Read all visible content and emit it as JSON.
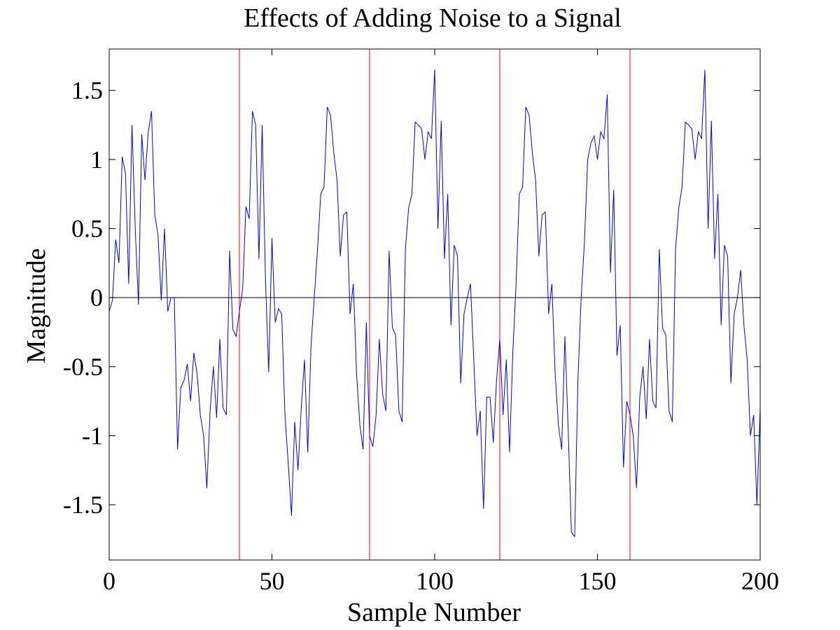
{
  "chart_data": {
    "type": "line",
    "title": "Effects of Adding Noise to a Signal",
    "xlabel": "Sample Number",
    "ylabel": "Magnitude",
    "xlim": [
      0,
      200
    ],
    "ylim": [
      -1.9,
      1.8
    ],
    "xticks": [
      0,
      50,
      100,
      150,
      200
    ],
    "yticks": [
      -1.5,
      -1,
      -0.5,
      0,
      0.5,
      1,
      1.5
    ],
    "xtick_labels": [
      "0",
      "50",
      "100",
      "150",
      "200"
    ],
    "ytick_labels": [
      "-1.5",
      "-1",
      "-0.5",
      "0",
      "0.5",
      "1",
      "1.5"
    ],
    "grid": false,
    "legend": "none",
    "colors": {
      "signal": "#0000ff",
      "markers": "#ff0000",
      "zero_line": "#000000",
      "axes": "#000000"
    },
    "zero_line_y": 0,
    "vertical_markers_x": [
      40,
      80,
      120,
      160
    ],
    "series": [
      {
        "x": [
          0,
          1,
          2,
          3,
          4,
          5,
          6,
          7,
          8,
          9,
          10,
          11,
          12,
          13,
          14,
          15,
          16,
          17,
          18,
          19,
          20,
          21,
          22,
          23,
          24,
          25,
          26,
          27,
          28,
          29,
          30,
          31,
          32,
          33,
          34,
          35,
          36,
          37,
          38,
          39,
          40,
          41,
          42,
          43,
          44,
          45,
          46,
          47,
          48,
          49,
          50,
          51,
          52,
          53,
          54,
          55,
          56,
          57,
          58,
          59,
          60,
          61,
          62,
          63,
          64,
          65,
          66,
          67,
          68,
          69,
          70,
          71,
          72,
          73,
          74,
          75,
          76,
          77,
          78,
          79,
          80,
          81,
          82,
          83,
          84,
          85,
          86,
          87,
          88,
          89,
          90,
          91,
          92,
          93,
          94,
          95,
          96,
          97,
          98,
          99,
          100,
          101,
          102,
          103,
          104,
          105,
          106,
          107,
          108,
          109,
          110,
          111,
          112,
          113,
          114,
          115,
          116,
          117,
          118,
          119,
          120,
          121,
          122,
          123,
          124,
          125,
          126,
          127,
          128,
          129,
          130,
          131,
          132,
          133,
          134,
          135,
          136,
          137,
          138,
          139,
          140,
          141,
          142,
          143,
          144,
          145,
          146,
          147,
          148,
          149,
          150,
          151,
          152,
          153,
          154,
          155,
          156,
          157,
          158,
          159,
          160,
          161,
          162,
          163,
          164,
          165,
          166,
          167,
          168,
          169,
          170,
          171,
          172,
          173,
          174,
          175,
          176,
          177,
          178,
          179,
          180,
          181,
          182,
          183,
          184,
          185,
          186,
          187,
          188,
          189,
          190,
          191,
          192,
          193,
          194,
          195,
          196,
          197,
          198,
          199,
          200
        ],
        "y": [
          -0.1,
          -0.02,
          0.42,
          0.25,
          1.02,
          0.9,
          0.1,
          1.25,
          0.5,
          -0.05,
          1.18,
          0.85,
          1.2,
          1.35,
          0.6,
          0.45,
          -0.02,
          0.5,
          -0.1,
          0.0,
          0.0,
          -1.1,
          -0.65,
          -0.6,
          -0.48,
          -0.75,
          -0.4,
          -0.55,
          -0.85,
          -1.0,
          -1.38,
          -0.82,
          -0.5,
          -0.87,
          -0.3,
          -0.8,
          -0.85,
          0.34,
          -0.23,
          -0.28,
          -0.1,
          0.06,
          0.66,
          0.57,
          1.35,
          1.25,
          0.28,
          1.25,
          0.14,
          -0.54,
          0.43,
          -0.18,
          -0.08,
          -0.12,
          -0.85,
          -1.2,
          -1.58,
          -0.9,
          -1.25,
          -0.8,
          -0.45,
          -1.12,
          -0.35,
          0.0,
          0.35,
          0.75,
          0.8,
          1.38,
          1.32,
          1.05,
          0.85,
          0.3,
          0.6,
          0.62,
          -0.12,
          0.1,
          -0.55,
          -0.92,
          -1.1,
          -0.18,
          -1.0,
          -1.08,
          -0.85,
          -0.3,
          -0.7,
          -0.82,
          0.34,
          -0.22,
          -0.27,
          -0.82,
          -0.9,
          0.35,
          0.65,
          0.75,
          1.27,
          1.25,
          1.22,
          1.0,
          1.2,
          1.15,
          1.65,
          0.5,
          1.28,
          0.28,
          0.75,
          -0.2,
          0.38,
          0.3,
          -0.62,
          -0.12,
          0.0,
          0.1,
          -0.45,
          -1.0,
          -0.82,
          -1.53,
          -0.72,
          -0.72,
          -1.05,
          -0.6,
          -0.3,
          -0.85,
          -0.45,
          -1.12,
          -0.4,
          0.1,
          0.75,
          0.8,
          1.38,
          1.32,
          1.05,
          0.85,
          0.3,
          0.6,
          0.62,
          -0.12,
          0.1,
          -0.55,
          -0.92,
          -1.1,
          -0.28,
          -0.95,
          -1.7,
          -1.73,
          -0.6,
          0.0,
          0.4,
          1.0,
          1.12,
          1.17,
          1.0,
          1.2,
          1.15,
          1.47,
          0.18,
          0.78,
          -0.42,
          -0.2,
          -1.23,
          -0.75,
          -0.85,
          -1.0,
          -1.38,
          -0.72,
          -0.5,
          -0.88,
          -0.3,
          -0.75,
          -0.8,
          0.35,
          -0.22,
          -0.27,
          -0.82,
          -0.9,
          0.35,
          0.65,
          0.8,
          1.27,
          1.25,
          1.22,
          1.0,
          1.2,
          1.15,
          1.65,
          0.5,
          1.28,
          0.28,
          0.75,
          -0.2,
          0.38,
          0.3,
          -0.62,
          -0.12,
          0.0,
          0.2,
          -0.2,
          -0.45,
          -1.0,
          -0.85,
          -1.5,
          -0.8
        ]
      }
    ]
  }
}
